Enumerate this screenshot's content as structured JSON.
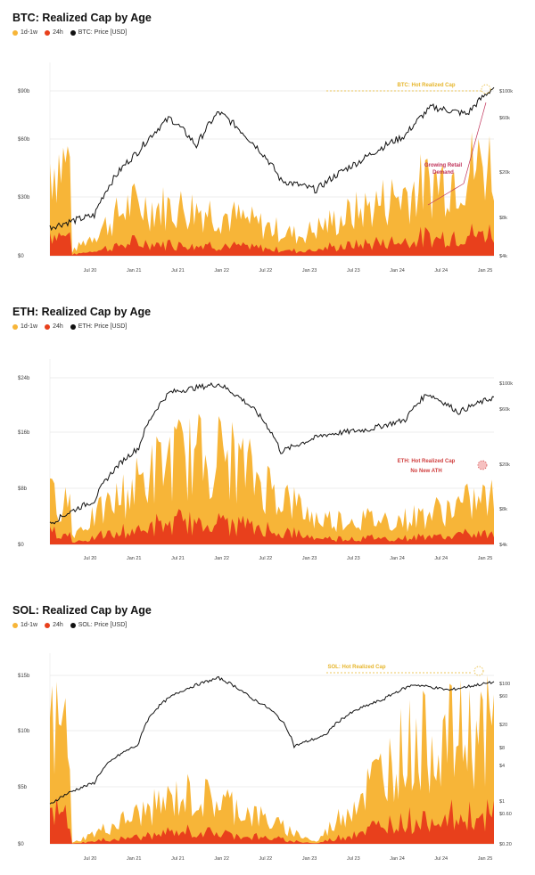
{
  "colors": {
    "long": "#f7b538",
    "short": "#e8401c",
    "price": "#111111",
    "grid": "#dcdcdc"
  },
  "x_ticks": [
    "Jul 20",
    "Jan 21",
    "Jul 21",
    "Jan 22",
    "Jul 22",
    "Jan 23",
    "Jul 23",
    "Jan 24",
    "Jul 24",
    "Jan 25"
  ],
  "chart_data": [
    {
      "type": "area",
      "title": "BTC: Realized Cap by Age",
      "legend": [
        "1d-1w",
        "24h",
        "BTC: Price [USD]"
      ],
      "left_ticks": [
        "$90b",
        "$60b",
        "$30b",
        "$0"
      ],
      "right_ticks": [
        "$100k",
        "$60k",
        "$20k",
        "$8k",
        "$4k"
      ],
      "annotations": [
        "BTC: Hot Realized Cap",
        "Growing Retail Demand"
      ],
      "realized_cap_peaks_usd_b": [
        [
          0.05,
          3
        ],
        [
          0.18,
          38
        ],
        [
          0.35,
          35
        ],
        [
          0.56,
          15
        ],
        [
          0.78,
          45
        ],
        [
          0.98,
          70
        ]
      ],
      "price_usd": [
        [
          0.0,
          9000
        ],
        [
          0.1,
          11000
        ],
        [
          0.2,
          33000
        ],
        [
          0.27,
          58000
        ],
        [
          0.33,
          36000
        ],
        [
          0.38,
          64000
        ],
        [
          0.45,
          40000
        ],
        [
          0.52,
          20000
        ],
        [
          0.6,
          17000
        ],
        [
          0.7,
          28000
        ],
        [
          0.8,
          43000
        ],
        [
          0.86,
          70000
        ],
        [
          0.94,
          62000
        ],
        [
          1.0,
          98000
        ]
      ]
    },
    {
      "type": "area",
      "title": "ETH: Realized Cap by Age",
      "legend": [
        "1d-1w",
        "24h",
        "ETH: Price [USD]"
      ],
      "left_ticks": [
        "$24b",
        "$16b",
        "$8b",
        "$0"
      ],
      "right_ticks": [
        "$100k",
        "$60k",
        "$20k",
        "$8k",
        "$4k"
      ],
      "annotations": [
        "ETH: Hot Realized Cap",
        "No New ATH"
      ],
      "realized_cap_peaks_usd_b": [
        [
          0.05,
          2
        ],
        [
          0.27,
          17
        ],
        [
          0.39,
          18
        ],
        [
          0.6,
          5
        ],
        [
          0.8,
          5
        ],
        [
          0.98,
          9
        ]
      ],
      "price_usd": [
        [
          0.0,
          230
        ],
        [
          0.1,
          380
        ],
        [
          0.2,
          1200
        ],
        [
          0.27,
          4000
        ],
        [
          0.38,
          4800
        ],
        [
          0.45,
          3000
        ],
        [
          0.52,
          1100
        ],
        [
          0.62,
          1600
        ],
        [
          0.72,
          1800
        ],
        [
          0.8,
          2200
        ],
        [
          0.85,
          3900
        ],
        [
          0.92,
          2600
        ],
        [
          1.0,
          3600
        ]
      ]
    },
    {
      "type": "area",
      "title": "SOL: Realized Cap by Age",
      "legend": [
        "1d-1w",
        "24h",
        "SOL: Price [USD]"
      ],
      "left_ticks": [
        "$15b",
        "$10b",
        "$5b",
        "$0"
      ],
      "right_ticks": [
        "$100",
        "$60",
        "$20",
        "$8",
        "$4",
        "$1",
        "$0.60",
        "$0.20"
      ],
      "annotations": [
        "SOL: Hot Realized Cap"
      ],
      "realized_cap_peaks_usd_b": [
        [
          0.05,
          0.1
        ],
        [
          0.3,
          6
        ],
        [
          0.4,
          5
        ],
        [
          0.6,
          0.2
        ],
        [
          0.8,
          12
        ],
        [
          0.98,
          14
        ]
      ],
      "price_usd": [
        [
          0.0,
          1.2
        ],
        [
          0.1,
          3
        ],
        [
          0.2,
          15
        ],
        [
          0.3,
          150
        ],
        [
          0.38,
          250
        ],
        [
          0.45,
          110
        ],
        [
          0.55,
          14
        ],
        [
          0.62,
          22
        ],
        [
          0.75,
          100
        ],
        [
          0.82,
          190
        ],
        [
          0.9,
          150
        ],
        [
          1.0,
          210
        ]
      ]
    }
  ]
}
